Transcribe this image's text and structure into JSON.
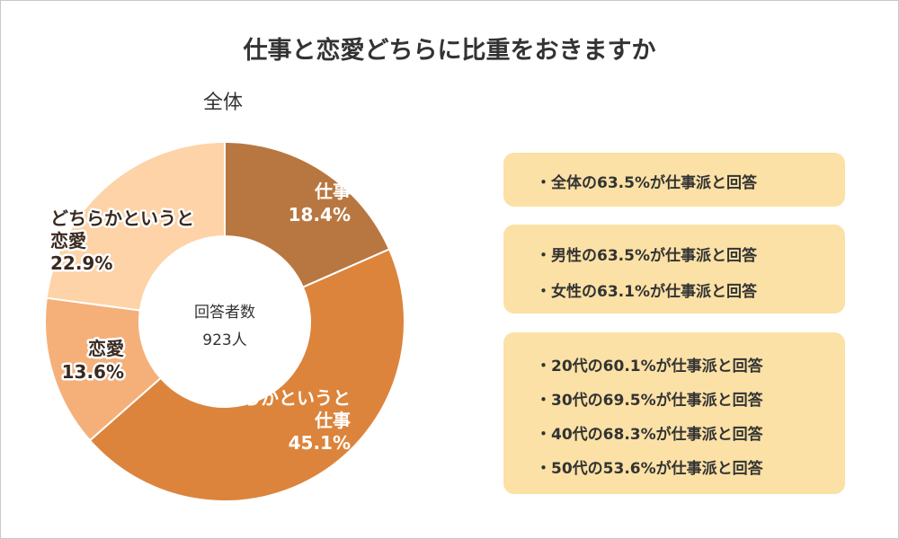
{
  "title": "仕事と恋愛どちらに比重をおきますか",
  "subtitle": "全体",
  "center": {
    "line1": "回答者数",
    "line2": "923人"
  },
  "colors": {
    "work": "#b87741",
    "rather_work": "#dc843c",
    "love": "#f5b07a",
    "rather_love": "#fdd3a7",
    "box": "#fbe1a6"
  },
  "chart_data": {
    "type": "donut",
    "title": "仕事と恋愛どちらに比重をおきますか",
    "subtitle": "全体",
    "unit": "%",
    "slices": [
      {
        "label": "仕事",
        "value": 18.4,
        "display": "18.4%"
      },
      {
        "label": "どちらかというと仕事",
        "value": 45.1,
        "display": "45.1%"
      },
      {
        "label": "恋愛",
        "value": 13.6,
        "display": "13.6%"
      },
      {
        "label": "どちらかというと恋愛",
        "value": 22.9,
        "display": "22.9%"
      }
    ]
  },
  "label_lines": {
    "work": [
      "仕事",
      "18.4%"
    ],
    "rather_work": [
      "どちらかというと",
      "仕事",
      "45.1%"
    ],
    "love": [
      "恋愛",
      "13.6%"
    ],
    "rather_love": [
      "どちらかというと",
      "恋愛",
      "22.9%"
    ]
  },
  "summary_boxes": [
    {
      "lines": [
        "・全体の63.5%が仕事派と回答"
      ]
    },
    {
      "lines": [
        "・男性の63.5%が仕事派と回答",
        "・女性の63.1%が仕事派と回答"
      ]
    },
    {
      "lines": [
        "・20代の60.1%が仕事派と回答",
        "・30代の69.5%が仕事派と回答",
        "・40代の68.3%が仕事派と回答",
        "・50代の53.6%が仕事派と回答"
      ]
    }
  ]
}
